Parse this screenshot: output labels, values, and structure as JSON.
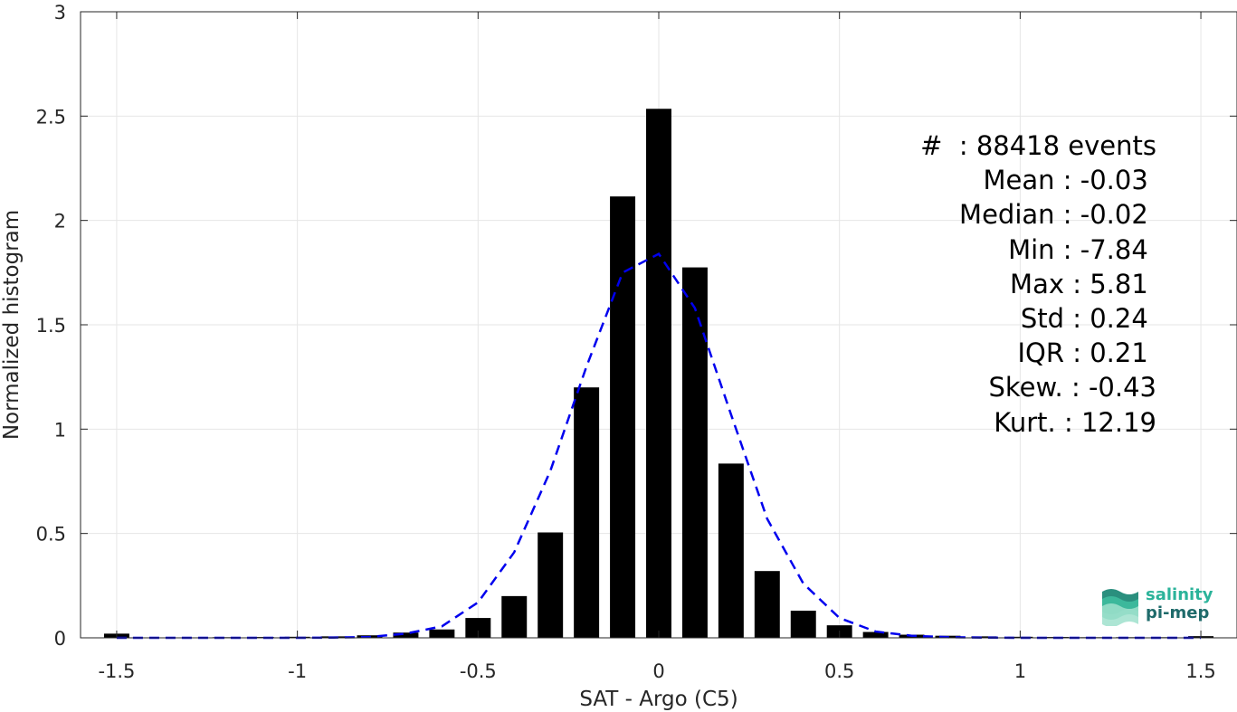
{
  "chart_data": {
    "type": "bar",
    "xlabel": "SAT - Argo (C5)",
    "ylabel": "Normalized histogram",
    "xlim": [
      -1.6,
      1.6
    ],
    "ylim": [
      0,
      3
    ],
    "xticks": [
      "-1.5",
      "-1",
      "-0.5",
      "0",
      "0.5",
      "1",
      "1.5"
    ],
    "xtick_values": [
      -1.5,
      -1,
      -0.5,
      0,
      0.5,
      1,
      1.5
    ],
    "yticks": [
      "0",
      "0.5",
      "1",
      "1.5",
      "2",
      "2.5",
      "3"
    ],
    "ytick_values": [
      0,
      0.5,
      1,
      1.5,
      2,
      2.5,
      3
    ],
    "grid": true,
    "bar_color": "#000000",
    "fit_color": "#0000ee",
    "bars": {
      "x": [
        -1.5,
        -1.4,
        -1.3,
        -1.2,
        -1.1,
        -1.0,
        -0.9,
        -0.8,
        -0.7,
        -0.6,
        -0.5,
        -0.4,
        -0.3,
        -0.2,
        -0.1,
        0.0,
        0.1,
        0.2,
        0.3,
        0.4,
        0.5,
        0.6,
        0.7,
        0.8,
        0.9,
        1.0,
        1.1,
        1.2,
        1.3,
        1.4,
        1.5
      ],
      "values": [
        0.02,
        0.002,
        0.002,
        0.003,
        0.004,
        0.005,
        0.007,
        0.012,
        0.025,
        0.04,
        0.095,
        0.2,
        0.505,
        1.2,
        2.115,
        2.535,
        1.775,
        0.835,
        0.32,
        0.13,
        0.06,
        0.028,
        0.015,
        0.01,
        0.007,
        0.005,
        0.004,
        0.003,
        0.003,
        0.003,
        0.008
      ]
    },
    "fit": {
      "x": [
        -1.5,
        -1.4,
        -1.3,
        -1.2,
        -1.1,
        -1.0,
        -0.9,
        -0.8,
        -0.7,
        -0.6,
        -0.5,
        -0.4,
        -0.3,
        -0.2,
        -0.1,
        0.0,
        0.1,
        0.2,
        0.3,
        0.4,
        0.5,
        0.6,
        0.7,
        0.8,
        0.9,
        1.0,
        1.1,
        1.2,
        1.3,
        1.4,
        1.5
      ],
      "y": [
        0,
        0,
        0,
        0,
        0,
        0,
        0.001,
        0.004,
        0.02,
        0.055,
        0.17,
        0.41,
        0.8,
        1.3,
        1.75,
        1.84,
        1.58,
        1.07,
        0.57,
        0.26,
        0.095,
        0.03,
        0.01,
        0.003,
        0.001,
        0,
        0,
        0,
        0,
        0,
        0
      ]
    }
  },
  "stats": [
    "#  : 88418 events",
    "Mean : -0.03 ",
    "Median : -0.02 ",
    "Min : -7.84 ",
    "Max : 5.81 ",
    "Std : 0.24 ",
    "IQR : 0.21 ",
    "Skew. : -0.43",
    "Kurt. : 12.19"
  ],
  "logo": {
    "line1": "salinity",
    "line2": "pi-mep"
  }
}
